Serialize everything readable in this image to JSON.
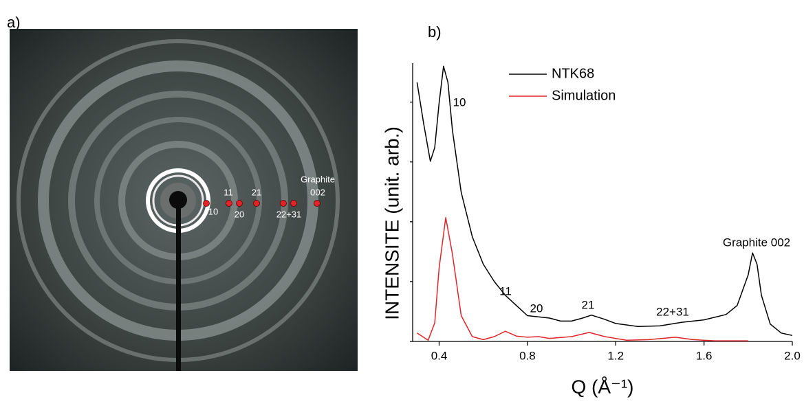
{
  "image": {
    "panel_label": "a)",
    "labels": [
      "10",
      "11",
      "20",
      "21",
      "22+31",
      "Graphite",
      "002"
    ]
  },
  "chart_data": {
    "type": "line",
    "panel_label": "b)",
    "x_label": "Q (Å⁻¹)",
    "y_label": "INTENSITE (unit. arb.)",
    "xlim": [
      0.28,
      2.0
    ],
    "xticks": [
      0.4,
      0.8,
      1.2,
      1.6,
      {
        "value": 2.0,
        "label": "2.0"
      }
    ],
    "ylim": [
      0,
      4.65
    ],
    "yticks": [
      0,
      1,
      2,
      3,
      4
    ],
    "annotations": [
      "10",
      "11",
      "20",
      "21",
      "22+31",
      "Graphite 002"
    ],
    "series": [
      {
        "name": "NTK68",
        "color": "#000000",
        "x": [
          0.3,
          0.33,
          0.36,
          0.38,
          0.4,
          0.42,
          0.44,
          0.46,
          0.5,
          0.55,
          0.6,
          0.65,
          0.7,
          0.75,
          0.8,
          0.85,
          0.9,
          0.95,
          1.0,
          1.05,
          1.09,
          1.15,
          1.2,
          1.3,
          1.4,
          1.5,
          1.55,
          1.6,
          1.7,
          1.75,
          1.8,
          1.82,
          1.84,
          1.86,
          1.9,
          1.95,
          2.0
        ],
        "values": [
          4.33,
          3.64,
          3.01,
          3.24,
          3.99,
          4.6,
          4.33,
          3.53,
          2.49,
          1.75,
          1.29,
          1.0,
          0.77,
          0.6,
          0.43,
          0.41,
          0.39,
          0.34,
          0.34,
          0.39,
          0.44,
          0.37,
          0.3,
          0.25,
          0.26,
          0.32,
          0.34,
          0.36,
          0.45,
          0.6,
          1.11,
          1.48,
          1.29,
          0.77,
          0.29,
          0.14,
          0.1
        ]
      },
      {
        "name": "Simulation",
        "color": "#e0242a",
        "x": [
          0.3,
          0.35,
          0.38,
          0.4,
          0.43,
          0.46,
          0.5,
          0.55,
          0.6,
          0.65,
          0.7,
          0.75,
          0.8,
          0.85,
          0.9,
          1.0,
          1.08,
          1.15,
          1.25,
          1.35,
          1.47,
          1.55,
          1.65,
          1.8
        ],
        "values": [
          0.14,
          0.02,
          0.31,
          1.23,
          2.07,
          1.46,
          0.43,
          0.08,
          0.03,
          0.08,
          0.17,
          0.09,
          0.07,
          0.08,
          0.05,
          0.08,
          0.15,
          0.08,
          0.02,
          0.03,
          0.07,
          0.03,
          0.01,
          0.01
        ]
      }
    ]
  }
}
